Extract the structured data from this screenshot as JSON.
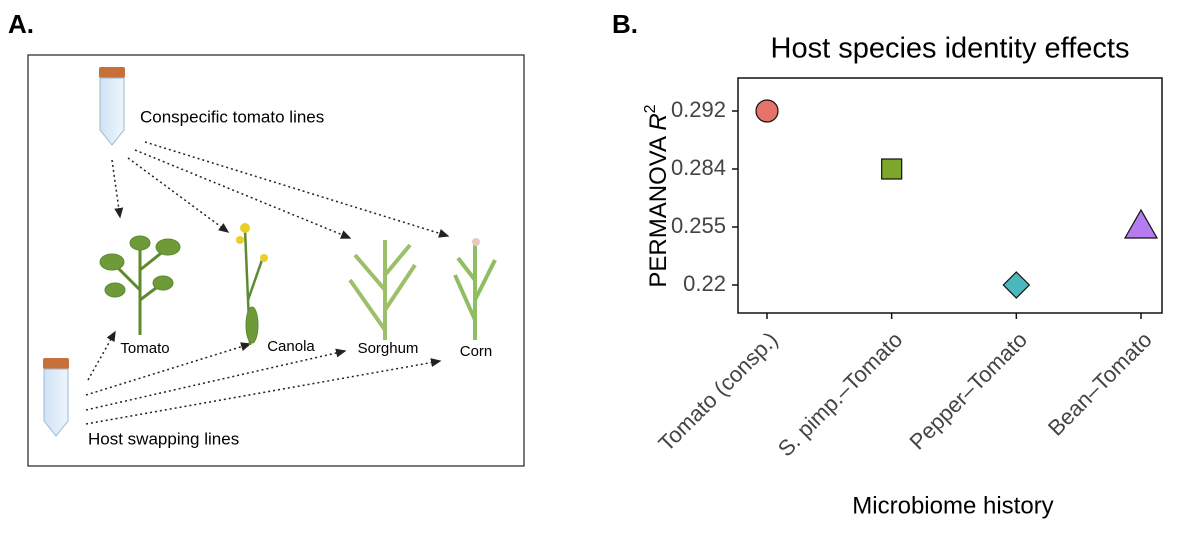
{
  "panel_labels": [
    "A.",
    "B."
  ],
  "panel_a": {
    "top_tube_label": "Conspecific tomato lines",
    "bottom_tube_label": "Host swapping lines",
    "plants": [
      "Tomato",
      "Canola",
      "Sorghum",
      "Corn"
    ]
  },
  "chart_data": {
    "type": "scatter",
    "title": "Host species identity effects",
    "x_label": "Microbiome history",
    "y_label": [
      "PERMANOVA ",
      "R",
      "2"
    ],
    "categories": [
      "Tomato (consp.)",
      "S. pimp.–Tomato",
      "Pepper–Tomato",
      "Bean–Tomato"
    ],
    "values": [
      0.292,
      0.284,
      0.22,
      0.255
    ],
    "colors": [
      "#e5736b",
      "#7fa82a",
      "#4bb8bd",
      "#b57cf0"
    ],
    "markers": [
      "circle",
      "square",
      "diamond",
      "triangle"
    ],
    "y_scale": "ordinal",
    "yticks": [
      0.22,
      0.255,
      0.284,
      0.292
    ]
  }
}
